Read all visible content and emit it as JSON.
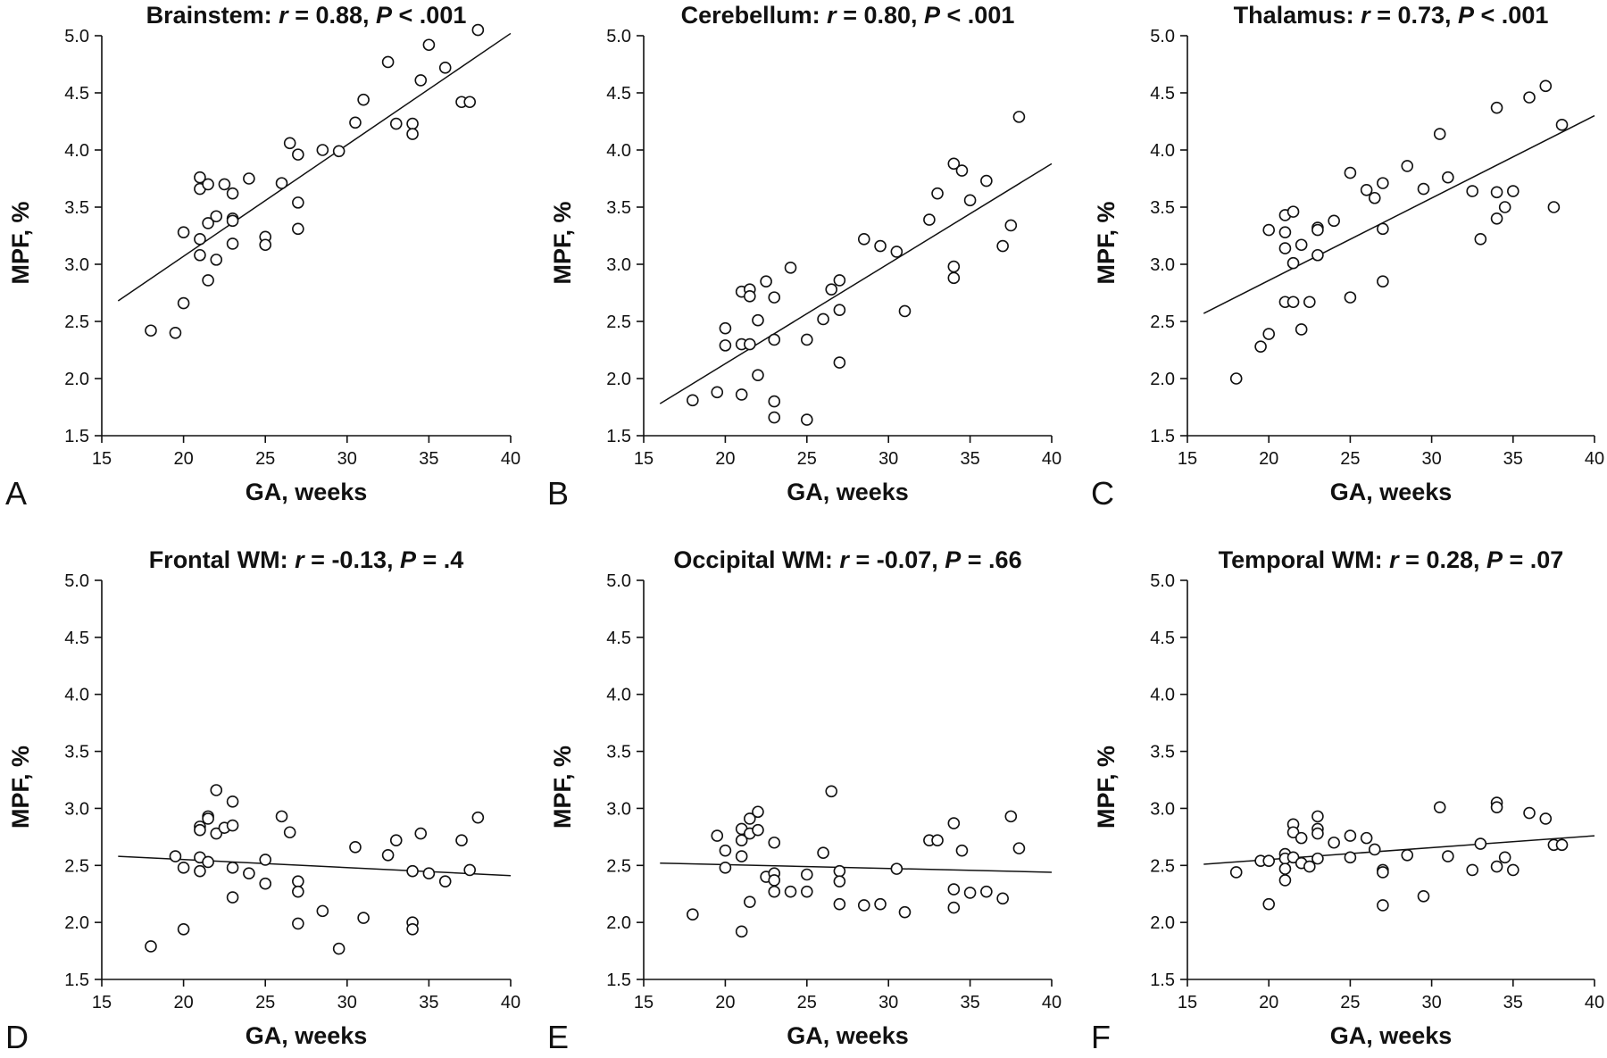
{
  "chart_data": [
    {
      "type": "scatter",
      "panel": "A",
      "title_region": "Brainstem",
      "r_label": "r",
      "r_value": "= 0.88,",
      "p_label": "P",
      "p_value": "< .001",
      "xlabel": "GA, weeks",
      "ylabel": "MPF, %",
      "xlim": [
        15,
        40
      ],
      "ylim": [
        1.5,
        5.0
      ],
      "xticks": [
        "15",
        "20",
        "25",
        "30",
        "35",
        "40"
      ],
      "yticks": [
        "1.5",
        "2.0",
        "2.5",
        "3.0",
        "3.5",
        "4.0",
        "4.5",
        "5.0"
      ],
      "fit_line": [
        [
          16,
          2.68
        ],
        [
          40,
          5.02
        ]
      ],
      "points": [
        [
          18,
          2.42
        ],
        [
          19.5,
          2.4
        ],
        [
          20,
          2.66
        ],
        [
          20,
          3.28
        ],
        [
          21,
          3.76
        ],
        [
          21,
          3.66
        ],
        [
          21,
          3.22
        ],
        [
          21,
          3.08
        ],
        [
          21.5,
          3.7
        ],
        [
          21.5,
          3.36
        ],
        [
          21.5,
          2.86
        ],
        [
          22,
          3.42
        ],
        [
          22,
          3.04
        ],
        [
          22.5,
          3.7
        ],
        [
          23,
          3.62
        ],
        [
          23,
          3.4
        ],
        [
          23,
          3.38
        ],
        [
          23,
          3.18
        ],
        [
          24,
          3.75
        ],
        [
          25,
          3.24
        ],
        [
          25,
          3.17
        ],
        [
          26,
          3.71
        ],
        [
          26.5,
          4.06
        ],
        [
          27,
          3.96
        ],
        [
          27,
          3.54
        ],
        [
          27,
          3.31
        ],
        [
          28.5,
          4.0
        ],
        [
          29.5,
          3.99
        ],
        [
          30.5,
          4.24
        ],
        [
          31,
          4.44
        ],
        [
          32.5,
          4.77
        ],
        [
          33,
          4.23
        ],
        [
          34,
          4.23
        ],
        [
          34,
          4.14
        ],
        [
          34.5,
          4.61
        ],
        [
          35,
          4.92
        ],
        [
          36,
          4.72
        ],
        [
          37,
          4.42
        ],
        [
          37.5,
          4.42
        ],
        [
          38,
          5.05
        ]
      ]
    },
    {
      "type": "scatter",
      "panel": "B",
      "title_region": "Cerebellum",
      "r_label": "r",
      "r_value": "= 0.80,",
      "p_label": "P",
      "p_value": "< .001",
      "xlabel": "GA, weeks",
      "ylabel": "MPF, %",
      "xlim": [
        15,
        40
      ],
      "ylim": [
        1.5,
        5.0
      ],
      "xticks": [
        "15",
        "20",
        "25",
        "30",
        "35",
        "40"
      ],
      "yticks": [
        "1.5",
        "2.0",
        "2.5",
        "3.0",
        "3.5",
        "4.0",
        "4.5",
        "5.0"
      ],
      "fit_line": [
        [
          16,
          1.78
        ],
        [
          40,
          3.88
        ]
      ],
      "points": [
        [
          18,
          1.81
        ],
        [
          19.5,
          1.88
        ],
        [
          20,
          2.44
        ],
        [
          20,
          2.29
        ],
        [
          21,
          2.76
        ],
        [
          21,
          2.3
        ],
        [
          21,
          1.86
        ],
        [
          21.5,
          2.78
        ],
        [
          21.5,
          2.72
        ],
        [
          21.5,
          2.3
        ],
        [
          22,
          2.51
        ],
        [
          22,
          2.03
        ],
        [
          22.5,
          2.85
        ],
        [
          23,
          2.71
        ],
        [
          23,
          2.34
        ],
        [
          23,
          1.8
        ],
        [
          23,
          1.66
        ],
        [
          24,
          2.97
        ],
        [
          25,
          2.34
        ],
        [
          25,
          1.64
        ],
        [
          26,
          2.52
        ],
        [
          26.5,
          2.78
        ],
        [
          27,
          2.86
        ],
        [
          27,
          2.6
        ],
        [
          27,
          2.14
        ],
        [
          28.5,
          3.22
        ],
        [
          29.5,
          3.16
        ],
        [
          30.5,
          3.11
        ],
        [
          31,
          2.59
        ],
        [
          32.5,
          3.39
        ],
        [
          33,
          3.62
        ],
        [
          34,
          3.88
        ],
        [
          34,
          2.98
        ],
        [
          34,
          2.88
        ],
        [
          34.5,
          3.82
        ],
        [
          35,
          3.56
        ],
        [
          36,
          3.73
        ],
        [
          37,
          3.16
        ],
        [
          37.5,
          3.34
        ],
        [
          38,
          4.29
        ]
      ]
    },
    {
      "type": "scatter",
      "panel": "C",
      "title_region": "Thalamus",
      "r_label": "r",
      "r_value": "= 0.73,",
      "p_label": "P",
      "p_value": "< .001",
      "xlabel": "GA, weeks",
      "ylabel": "MPF, %",
      "xlim": [
        15,
        40
      ],
      "ylim": [
        1.5,
        5.0
      ],
      "xticks": [
        "15",
        "20",
        "25",
        "30",
        "35",
        "40"
      ],
      "yticks": [
        "1.5",
        "2.0",
        "2.5",
        "3.0",
        "3.5",
        "4.0",
        "4.5",
        "5.0"
      ],
      "fit_line": [
        [
          16,
          2.57
        ],
        [
          40,
          4.3
        ]
      ],
      "points": [
        [
          18,
          2.0
        ],
        [
          19.5,
          2.28
        ],
        [
          20,
          2.39
        ],
        [
          20,
          3.3
        ],
        [
          21,
          3.43
        ],
        [
          21,
          3.28
        ],
        [
          21,
          3.14
        ],
        [
          21,
          2.67
        ],
        [
          21.5,
          3.46
        ],
        [
          21.5,
          3.01
        ],
        [
          21.5,
          2.67
        ],
        [
          22,
          3.17
        ],
        [
          22,
          2.43
        ],
        [
          22.5,
          2.67
        ],
        [
          23,
          3.32
        ],
        [
          23,
          3.3
        ],
        [
          23,
          3.08
        ],
        [
          24,
          3.38
        ],
        [
          25,
          3.8
        ],
        [
          25,
          2.71
        ],
        [
          26,
          3.65
        ],
        [
          26.5,
          3.58
        ],
        [
          27,
          3.71
        ],
        [
          27,
          3.31
        ],
        [
          27,
          2.85
        ],
        [
          28.5,
          3.86
        ],
        [
          29.5,
          3.66
        ],
        [
          30.5,
          4.14
        ],
        [
          31,
          3.76
        ],
        [
          32.5,
          3.64
        ],
        [
          33,
          3.22
        ],
        [
          34,
          4.37
        ],
        [
          34,
          3.63
        ],
        [
          34,
          3.4
        ],
        [
          34.5,
          3.5
        ],
        [
          35,
          3.64
        ],
        [
          36,
          4.46
        ],
        [
          37,
          4.56
        ],
        [
          37.5,
          3.5
        ],
        [
          38,
          4.22
        ]
      ]
    },
    {
      "type": "scatter",
      "panel": "D",
      "title_region": "Frontal WM",
      "r_label": "r",
      "r_value": "= -0.13,",
      "p_label": "P",
      "p_value": "= .4",
      "xlabel": "GA, weeks",
      "ylabel": "MPF, %",
      "xlim": [
        15,
        40
      ],
      "ylim": [
        1.5,
        5.0
      ],
      "xticks": [
        "15",
        "20",
        "25",
        "30",
        "35",
        "40"
      ],
      "yticks": [
        "1.5",
        "2.0",
        "2.5",
        "3.0",
        "3.5",
        "4.0",
        "4.5",
        "5.0"
      ],
      "fit_line": [
        [
          16,
          2.58
        ],
        [
          40,
          2.41
        ]
      ],
      "points": [
        [
          18,
          1.79
        ],
        [
          19.5,
          2.58
        ],
        [
          20,
          2.48
        ],
        [
          20,
          1.94
        ],
        [
          21,
          2.84
        ],
        [
          21,
          2.81
        ],
        [
          21,
          2.57
        ],
        [
          21,
          2.45
        ],
        [
          21.5,
          2.93
        ],
        [
          21.5,
          2.91
        ],
        [
          21.5,
          2.53
        ],
        [
          22,
          3.16
        ],
        [
          22,
          2.78
        ],
        [
          22.5,
          2.83
        ],
        [
          23,
          3.06
        ],
        [
          23,
          2.85
        ],
        [
          23,
          2.48
        ],
        [
          23,
          2.22
        ],
        [
          24,
          2.43
        ],
        [
          25,
          2.55
        ],
        [
          25,
          2.34
        ],
        [
          26,
          2.93
        ],
        [
          26.5,
          2.79
        ],
        [
          27,
          2.36
        ],
        [
          27,
          2.27
        ],
        [
          27,
          1.99
        ],
        [
          28.5,
          2.1
        ],
        [
          29.5,
          1.77
        ],
        [
          30.5,
          2.66
        ],
        [
          31,
          2.04
        ],
        [
          32.5,
          2.59
        ],
        [
          33,
          2.72
        ],
        [
          34,
          2.45
        ],
        [
          34,
          2.0
        ],
        [
          34,
          1.94
        ],
        [
          34.5,
          2.78
        ],
        [
          35,
          2.43
        ],
        [
          36,
          2.36
        ],
        [
          37,
          2.72
        ],
        [
          37.5,
          2.46
        ],
        [
          38,
          2.92
        ]
      ]
    },
    {
      "type": "scatter",
      "panel": "E",
      "title_region": "Occipital WM",
      "r_label": "r",
      "r_value": "= -0.07,",
      "p_label": "P",
      "p_value": "= .66",
      "xlabel": "GA, weeks",
      "ylabel": "MPF, %",
      "xlim": [
        15,
        40
      ],
      "ylim": [
        1.5,
        5.0
      ],
      "xticks": [
        "15",
        "20",
        "25",
        "30",
        "35",
        "40"
      ],
      "yticks": [
        "1.5",
        "2.0",
        "2.5",
        "3.0",
        "3.5",
        "4.0",
        "4.5",
        "5.0"
      ],
      "fit_line": [
        [
          16,
          2.52
        ],
        [
          40,
          2.44
        ]
      ],
      "points": [
        [
          18,
          2.07
        ],
        [
          19.5,
          2.76
        ],
        [
          20,
          2.63
        ],
        [
          20,
          2.48
        ],
        [
          21,
          2.82
        ],
        [
          21,
          2.72
        ],
        [
          21,
          2.58
        ],
        [
          21,
          1.92
        ],
        [
          21.5,
          2.91
        ],
        [
          21.5,
          2.78
        ],
        [
          21.5,
          2.18
        ],
        [
          22,
          2.97
        ],
        [
          22,
          2.81
        ],
        [
          22.5,
          2.4
        ],
        [
          23,
          2.7
        ],
        [
          23,
          2.43
        ],
        [
          23,
          2.37
        ],
        [
          23,
          2.27
        ],
        [
          24,
          2.27
        ],
        [
          25,
          2.42
        ],
        [
          25,
          2.27
        ],
        [
          26,
          2.61
        ],
        [
          26.5,
          3.15
        ],
        [
          27,
          2.45
        ],
        [
          27,
          2.36
        ],
        [
          27,
          2.16
        ],
        [
          28.5,
          2.15
        ],
        [
          29.5,
          2.16
        ],
        [
          30.5,
          2.47
        ],
        [
          31,
          2.09
        ],
        [
          32.5,
          2.72
        ],
        [
          33,
          2.72
        ],
        [
          34,
          2.87
        ],
        [
          34,
          2.29
        ],
        [
          34,
          2.13
        ],
        [
          34.5,
          2.63
        ],
        [
          35,
          2.26
        ],
        [
          36,
          2.27
        ],
        [
          37,
          2.21
        ],
        [
          37.5,
          2.93
        ],
        [
          38,
          2.65
        ]
      ]
    },
    {
      "type": "scatter",
      "panel": "F",
      "title_region": "Temporal WM",
      "r_label": "r",
      "r_value": "= 0.28,",
      "p_label": "P",
      "p_value": "= .07",
      "xlabel": "GA, weeks",
      "ylabel": "MPF, %",
      "xlim": [
        15,
        40
      ],
      "ylim": [
        1.5,
        5.0
      ],
      "xticks": [
        "15",
        "20",
        "25",
        "30",
        "35",
        "40"
      ],
      "yticks": [
        "1.5",
        "2.0",
        "2.5",
        "3.0",
        "3.5",
        "4.0",
        "4.5",
        "5.0"
      ],
      "fit_line": [
        [
          16,
          2.51
        ],
        [
          40,
          2.76
        ]
      ],
      "points": [
        [
          18,
          2.44
        ],
        [
          19.5,
          2.54
        ],
        [
          20,
          2.54
        ],
        [
          20,
          2.16
        ],
        [
          21,
          2.6
        ],
        [
          21,
          2.56
        ],
        [
          21,
          2.47
        ],
        [
          21,
          2.37
        ],
        [
          21.5,
          2.86
        ],
        [
          21.5,
          2.79
        ],
        [
          21.5,
          2.57
        ],
        [
          22,
          2.74
        ],
        [
          22,
          2.52
        ],
        [
          22.5,
          2.49
        ],
        [
          23,
          2.93
        ],
        [
          23,
          2.82
        ],
        [
          23,
          2.78
        ],
        [
          23,
          2.56
        ],
        [
          24,
          2.7
        ],
        [
          25,
          2.76
        ],
        [
          25,
          2.57
        ],
        [
          26,
          2.74
        ],
        [
          26.5,
          2.64
        ],
        [
          27,
          2.46
        ],
        [
          27,
          2.44
        ],
        [
          27,
          2.15
        ],
        [
          28.5,
          2.59
        ],
        [
          29.5,
          2.23
        ],
        [
          30.5,
          3.01
        ],
        [
          31,
          2.58
        ],
        [
          32.5,
          2.46
        ],
        [
          33,
          2.69
        ],
        [
          34,
          3.05
        ],
        [
          34,
          3.01
        ],
        [
          34,
          2.49
        ],
        [
          34.5,
          2.57
        ],
        [
          35,
          2.46
        ],
        [
          36,
          2.96
        ],
        [
          37,
          2.91
        ],
        [
          37.5,
          2.68
        ],
        [
          38,
          2.68
        ]
      ]
    }
  ]
}
